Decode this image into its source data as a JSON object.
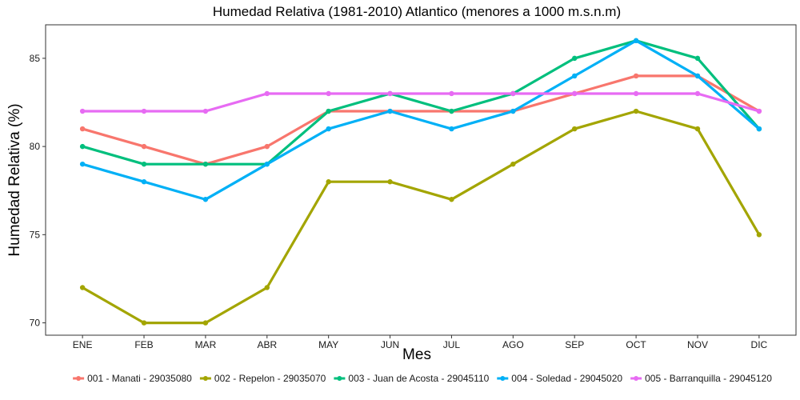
{
  "chart_data": {
    "type": "line",
    "title": "Humedad Relativa (1981-2010) Atlantico (menores a 1000 m.s.n.m)",
    "xlabel": "Mes",
    "ylabel": "Humedad Relativa (%)",
    "categories": [
      "ENE",
      "FEB",
      "MAR",
      "ABR",
      "MAY",
      "JUN",
      "JUL",
      "AGO",
      "SEP",
      "OCT",
      "NOV",
      "DIC"
    ],
    "yticks": [
      70,
      75,
      80,
      85
    ],
    "ylim": [
      69.3,
      86.9
    ],
    "grid": false,
    "legend_position": "bottom",
    "series": [
      {
        "name": "001 - Manati - 29035080",
        "color": "#F8766D",
        "values": [
          81,
          80,
          79,
          80,
          82,
          82,
          82,
          82,
          83,
          84,
          84,
          82
        ]
      },
      {
        "name": "002 - Repelon - 29035070",
        "color": "#A3A500",
        "values": [
          72,
          70,
          70,
          72,
          78,
          78,
          77,
          79,
          81,
          82,
          81,
          75
        ]
      },
      {
        "name": "003 - Juan de Acosta - 29045110",
        "color": "#00BF7D",
        "values": [
          80,
          79,
          79,
          79,
          82,
          83,
          82,
          83,
          85,
          86,
          85,
          81
        ]
      },
      {
        "name": "004 - Soledad - 29045020",
        "color": "#00B0F6",
        "values": [
          79,
          78,
          77,
          79,
          81,
          82,
          81,
          82,
          84,
          86,
          84,
          81
        ]
      },
      {
        "name": "005 - Barranquilla - 29045120",
        "color": "#E76BF3",
        "values": [
          82,
          82,
          82,
          83,
          83,
          83,
          83,
          83,
          83,
          83,
          83,
          82
        ]
      }
    ]
  }
}
